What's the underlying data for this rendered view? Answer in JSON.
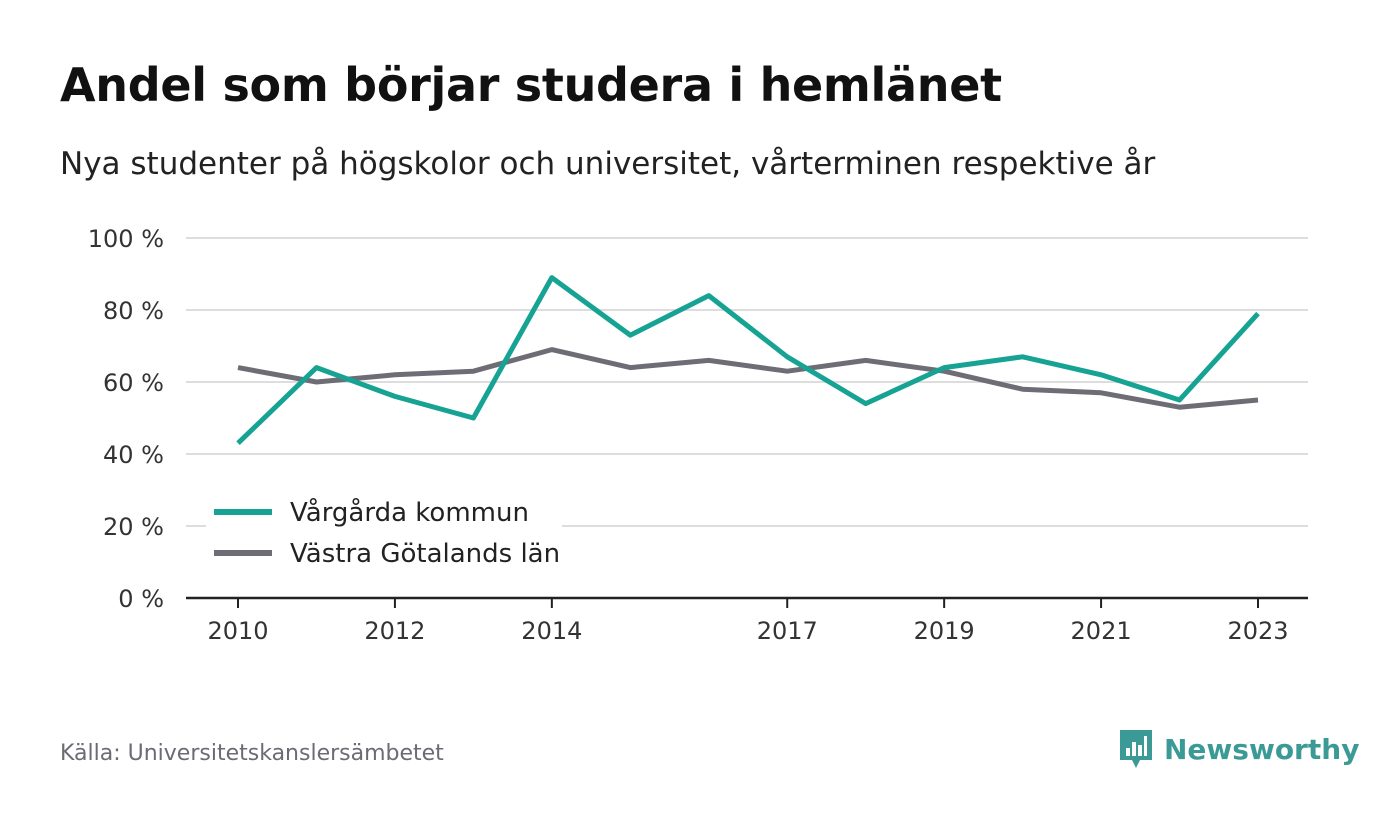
{
  "title": "Andel som börjar studera i hemlänet",
  "subtitle": "Nya studenter på högskolor och universitet, vårterminen respektive år",
  "source": "Källa: Universitetskanslersämbetet",
  "brand": {
    "name": "Newsworthy",
    "icon": "newsworthy-logo-icon",
    "color": "#3b9a96"
  },
  "chart_data": {
    "type": "line",
    "x": [
      2010,
      2011,
      2012,
      2013,
      2014,
      2015,
      2016,
      2017,
      2018,
      2019,
      2020,
      2021,
      2022,
      2023
    ],
    "x_tick_labels": [
      "2010",
      "2012",
      "2014",
      "2017",
      "2019",
      "2021",
      "2023"
    ],
    "y_tick_labels": [
      "0 %",
      "20 %",
      "40 %",
      "60 %",
      "80 %",
      "100 %"
    ],
    "ylim": [
      0,
      100
    ],
    "grid": true,
    "legend_position": "bottom-left",
    "series": [
      {
        "name": "Vårgårda kommun",
        "color": "#16a394",
        "values": [
          43,
          64,
          56,
          50,
          89,
          73,
          84,
          67,
          54,
          64,
          67,
          62,
          55,
          79
        ]
      },
      {
        "name": "Västra Götalands län",
        "color": "#6e6d75",
        "values": [
          64,
          60,
          62,
          63,
          69,
          64,
          66,
          63,
          66,
          63,
          58,
          57,
          53,
          55
        ]
      }
    ]
  }
}
